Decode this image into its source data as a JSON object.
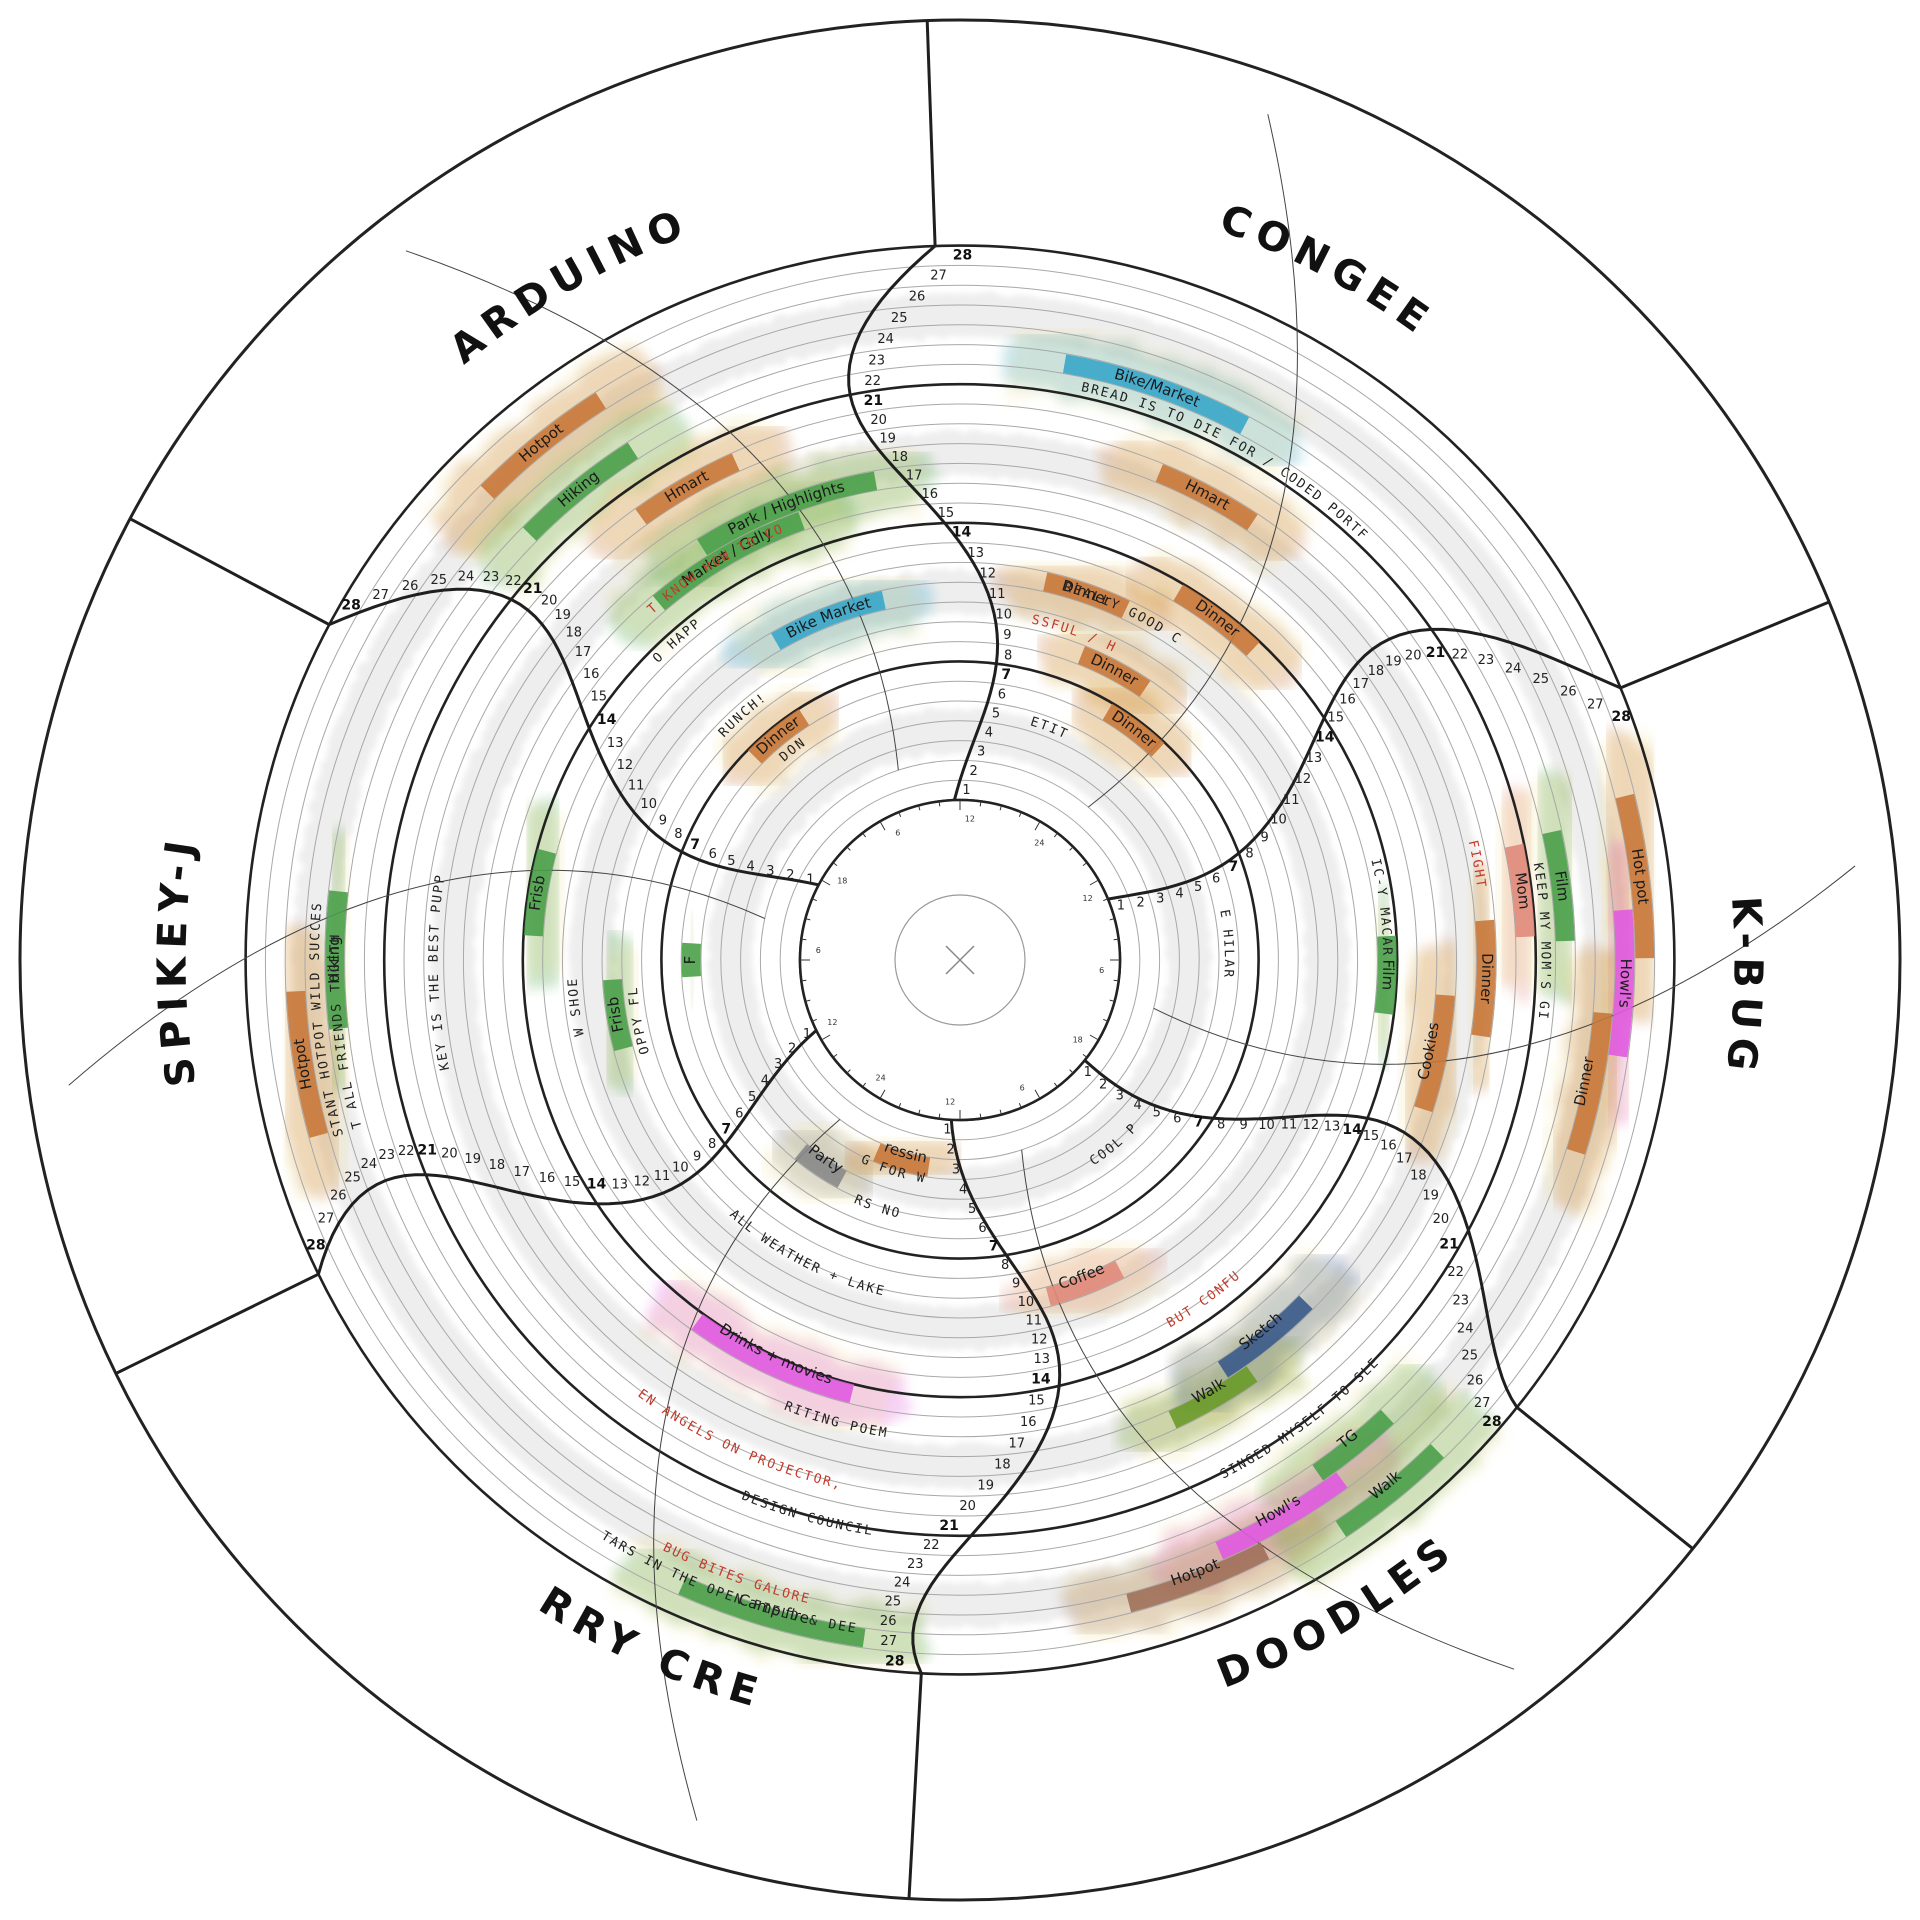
{
  "chart_data": {
    "type": "radial-timeline",
    "title": "",
    "days": [
      1,
      2,
      3,
      4,
      5,
      6,
      7,
      8,
      9,
      10,
      11,
      12,
      13,
      14,
      15,
      16,
      17,
      18,
      19,
      20,
      21,
      22,
      23,
      24,
      25,
      26,
      27,
      28
    ],
    "week_markers": [
      7,
      14,
      21,
      28
    ],
    "clock_labels": [
      "12",
      "24",
      "12",
      "6",
      "18",
      "6",
      "12",
      "24",
      "12",
      "6",
      "18",
      "6"
    ],
    "groups": [
      {
        "name": "CONGEE",
        "angle": 28,
        "activities": [
          {
            "label": "Bike/Market",
            "day": 23,
            "color": "#3aa6c9"
          },
          {
            "label": "Hmart",
            "day": 19,
            "color": "#c8783a"
          },
          {
            "label": "Dinner",
            "day": 14,
            "color": "#c8783a"
          },
          {
            "label": "Dinner",
            "day": 12,
            "color": "#c8783a"
          },
          {
            "label": "Dinner",
            "day": 9,
            "color": "#c8783a"
          },
          {
            "label": "Dinner",
            "day": 7,
            "color": "#c8783a"
          }
        ],
        "notes": [
          {
            "text": "OLIVE BREAD IS TO DIE FOR / CODED PORTFOLIO!!",
            "day": 22
          },
          {
            "text": "MADE REALLY GOOD CONGEE",
            "day": 12
          },
          {
            "text": "STRESSFUL / HAPPY",
            "day": 10
          },
          {
            "text": "REPETITIVE",
            "day": 5
          }
        ]
      },
      {
        "name": "K-BUG",
        "angle": 92,
        "activities": [
          {
            "label": "Hot pot",
            "day": 27,
            "color": "#c8783a"
          },
          {
            "label": "Howl's",
            "day": 26,
            "color": "#e05ae0"
          },
          {
            "label": "Dinner",
            "day": 25,
            "color": "#c8783a"
          },
          {
            "label": "Mom",
            "day": 21,
            "color": "#e08a7a"
          },
          {
            "label": "Dinner",
            "day": 19,
            "color": "#c8783a"
          },
          {
            "label": "Cookies",
            "day": 17,
            "color": "#c8783a"
          },
          {
            "label": "Film",
            "day": 23,
            "color": "#4aa04a"
          },
          {
            "label": "Film",
            "day": 14,
            "color": "#4aa04a"
          }
        ],
        "notes": [
          {
            "text": "FIGHT",
            "day": 19
          },
          {
            "text": "I KEEP MY MOM'S GIFT",
            "day": 22
          },
          {
            "text": "PANIC-Y MACARANA",
            "day": 14
          },
          {
            "text": "WE'RE HILARIOUS",
            "day": 6
          }
        ]
      },
      {
        "name": "DOODLES",
        "angle": 150,
        "activities": [
          {
            "label": "TG",
            "day": 24,
            "color": "#4aa04a"
          },
          {
            "label": "Howl's",
            "day": 25,
            "color": "#e05ae0"
          },
          {
            "label": "Hotpot",
            "day": 26,
            "color": "#a0705a"
          },
          {
            "label": "Walk",
            "day": 27,
            "color": "#4aa04a"
          },
          {
            "label": "Walk",
            "day": 18,
            "color": "#6a9a2a"
          },
          {
            "label": "Coffee",
            "day": 10,
            "color": "#e08a7a"
          },
          {
            "label": "Sketch",
            "day": 17,
            "color": "#3a5a8a"
          }
        ],
        "notes": [
          {
            "text": "I SINGED MYSELF TO SLEEP",
            "day": 22
          },
          {
            "text": "FUN BUT CONFUSED",
            "day": 14
          },
          {
            "text": "MET A COOL PERSON",
            "day": 5
          }
        ]
      },
      {
        "name": "CURRY CREW",
        "angle": 205,
        "activities": [
          {
            "label": "Camp fire",
            "day": 27,
            "color": "#4aa04a"
          },
          {
            "label": "Drinks + movies",
            "day": 15,
            "color": "#e05ae0"
          },
          {
            "label": "Party",
            "day": 5,
            "color": "#888888"
          },
          {
            "label": "Dressing",
            "day": 3,
            "color": "#c8783a"
          }
        ],
        "notes": [
          {
            "text": "STARS IN THE OPEN FIELD & DEER",
            "day": 27
          },
          {
            "text": "BUG BITES GALORE",
            "day": 26
          },
          {
            "text": "DESIGN COUNCIL",
            "day": 22
          },
          {
            "text": "FALLEN ANGELS ON PROJECTOR, WOW",
            "day": 20
          },
          {
            "text": "WRITING POEMS",
            "day": 17
          },
          {
            "text": "BIKING IN FALL WEATHER + LAKESHORE TRAIL",
            "day": 10
          },
          {
            "text": "SHOPPING FOR WEDDING!",
            "day": 4
          },
          {
            "text": "STARS NOVEL",
            "day": 6
          }
        ]
      },
      {
        "name": "SPIKEY-J",
        "angle": 270,
        "activities": [
          {
            "label": "Hotpot",
            "day": 26,
            "color": "#c8783a"
          },
          {
            "label": "Hiking",
            "day": 24,
            "color": "#4aa04a"
          },
          {
            "label": "Frisb",
            "day": 14,
            "color": "#4aa04a"
          },
          {
            "label": "Frisb",
            "day": 10,
            "color": "#4aa04a"
          },
          {
            "label": "F",
            "day": 6,
            "color": "#4aa04a"
          }
        ],
        "notes": [
          {
            "text": "INSTANT HOTPOT WILD SUCCESS!",
            "day": 25
          },
          {
            "text": "WHISKEY IS THE BEST PUPPY :)",
            "day": 19
          },
          {
            "text": "GOT ALL FRIENDS TOGETHER",
            "day": 24
          },
          {
            "text": "NEW SHOES!",
            "day": 12
          },
          {
            "text": "FLOPPY FLIP",
            "day": 9
          }
        ]
      },
      {
        "name": "ARDUINO",
        "angle": 330,
        "activities": [
          {
            "label": "Hotpot",
            "day": 26,
            "color": "#c8783a"
          },
          {
            "label": "Hmart",
            "day": 20,
            "color": "#c8783a"
          },
          {
            "label": "Park / Highlights",
            "day": 17,
            "color": "#4aa04a"
          },
          {
            "label": "Hiking",
            "day": 23,
            "color": "#4aa04a"
          },
          {
            "label": "Market / Gdly",
            "day": 16,
            "color": "#4aa04a"
          },
          {
            "label": "Bike Market",
            "day": 11,
            "color": "#3aa6c9"
          },
          {
            "label": "Dinner",
            "day": 7,
            "color": "#c8783a"
          }
        ],
        "notes": [
          {
            "text": "SO HAPPY",
            "day": 14
          },
          {
            "text": "DIDN'T KNOW HOW TO CONTROL",
            "day": 16
          },
          {
            "text": "BRUNCH!!",
            "day": 9
          },
          {
            "text": "UDON!",
            "day": 6
          }
        ]
      }
    ]
  }
}
